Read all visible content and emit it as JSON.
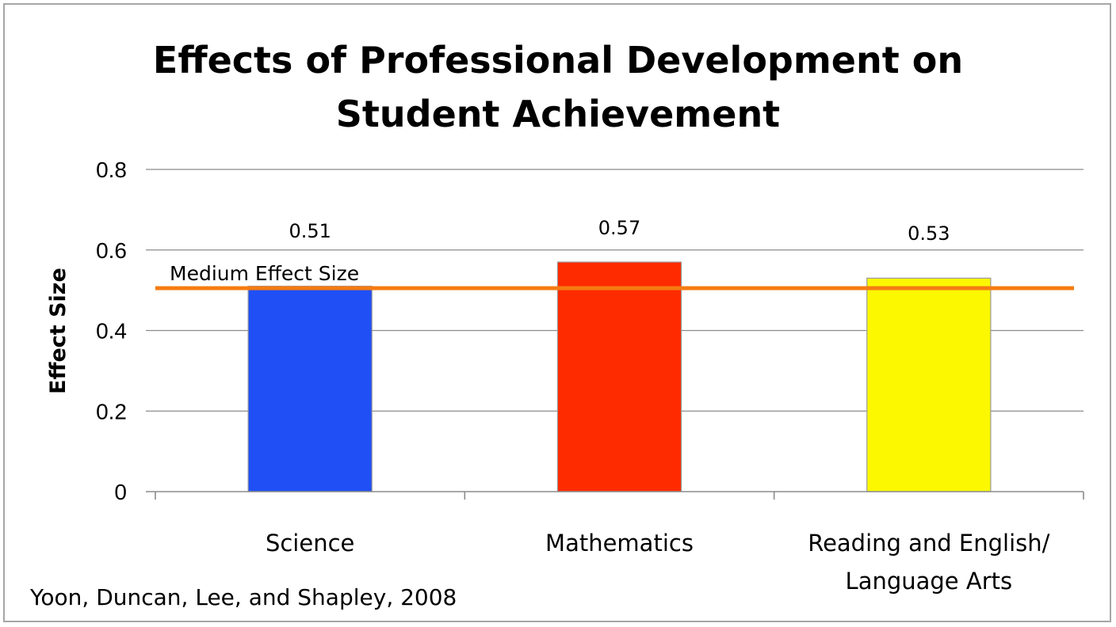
{
  "chart_data": {
    "type": "bar",
    "title": "Effects of Professional Development on Student Achievement",
    "title_lines": [
      "Effects of Professional Development on",
      "Student Achievement"
    ],
    "ylabel": "Effect Size",
    "xlabel": "",
    "ylim": [
      0,
      0.8
    ],
    "yticks": [
      0,
      0.2,
      0.4,
      0.6,
      0.8
    ],
    "ytick_labels": [
      "0",
      "0.2",
      "0.4",
      "0.6",
      "0.8"
    ],
    "grid": true,
    "categories": [
      {
        "label_lines": [
          "Science"
        ]
      },
      {
        "label_lines": [
          "Mathematics"
        ]
      },
      {
        "label_lines": [
          "Reading and English/",
          "Language Arts"
        ]
      }
    ],
    "values": [
      0.51,
      0.57,
      0.53
    ],
    "value_labels": [
      "0.51",
      "0.57",
      "0.53"
    ],
    "bar_colors": [
      "#1f4ff5",
      "#fe2b00",
      "#fcf800"
    ],
    "reference_line": {
      "value": 0.5,
      "label": "Medium Effect Size",
      "color": "#f57c12"
    },
    "source_note": "Yoon, Duncan, Lee, and Shapley, 2008"
  }
}
